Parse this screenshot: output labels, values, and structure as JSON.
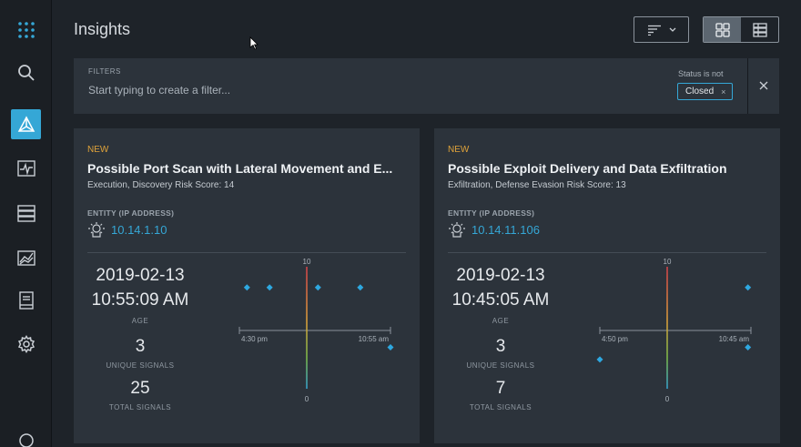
{
  "header": {
    "title": "Insights"
  },
  "toolbar": {
    "sort_icon": "sort-lines-icon",
    "view_options": [
      "grid-view-icon",
      "list-view-icon"
    ],
    "selected_view": "grid"
  },
  "filters": {
    "label": "FILTERS",
    "placeholder": "Start typing to create a filter...",
    "status_label": "Status is not",
    "chip": "Closed",
    "chip_remove": "×",
    "close": "×"
  },
  "sidebar": {
    "items": [
      {
        "icon": "grid-dots-icon",
        "active": false
      },
      {
        "icon": "search-icon",
        "active": false
      },
      {
        "icon": "insights-icon",
        "active": true
      },
      {
        "icon": "signals-pulse-icon",
        "active": false
      },
      {
        "icon": "records-stack-icon",
        "active": false
      },
      {
        "icon": "analytics-icon",
        "active": false
      },
      {
        "icon": "rules-book-icon",
        "active": false
      },
      {
        "icon": "gear-icon",
        "active": false
      },
      {
        "icon": "user-icon",
        "active": false
      }
    ]
  },
  "cards": [
    {
      "status": "NEW",
      "title": "Possible Port Scan with Lateral Movement and E...",
      "subtitle": "Execution, Discovery Risk Score: 14",
      "entity_label": "ENTITY (IP ADDRESS)",
      "entity_ip": "10.14.1.10",
      "date": "2019-02-13",
      "time": "10:55:09 AM",
      "age_label": "AGE",
      "unique_signals": "3",
      "unique_label": "UNIQUE SIGNALS",
      "total_signals": "25",
      "total_label": "TOTAL SIGNALS",
      "chart_data": {
        "type": "scatter",
        "ylim": [
          0,
          10
        ],
        "ytick_labels": [
          "10",
          "0"
        ],
        "x_labels": [
          "4:30 pm",
          "10:55 am"
        ],
        "points": [
          {
            "x": 0.05,
            "y": 8.3
          },
          {
            "x": 0.2,
            "y": 8.3
          },
          {
            "x": 0.52,
            "y": 8.3
          },
          {
            "x": 0.8,
            "y": 8.3
          },
          {
            "x": 1.0,
            "y": 3.4
          }
        ],
        "point_color": "#2ea8e0"
      }
    },
    {
      "status": "NEW",
      "title": "Possible Exploit Delivery and Data Exfiltration",
      "subtitle": "Exfiltration, Defense Evasion Risk Score: 13",
      "entity_label": "ENTITY (IP ADDRESS)",
      "entity_ip": "10.14.11.106",
      "date": "2019-02-13",
      "time": "10:45:05 AM",
      "age_label": "AGE",
      "unique_signals": "3",
      "unique_label": "UNIQUE SIGNALS",
      "total_signals": "7",
      "total_label": "TOTAL SIGNALS",
      "chart_data": {
        "type": "scatter",
        "ylim": [
          0,
          10
        ],
        "ytick_labels": [
          "10",
          "0"
        ],
        "x_labels": [
          "4:50 pm",
          "10:45 am"
        ],
        "points": [
          {
            "x": 0.98,
            "y": 8.3
          },
          {
            "x": 0.98,
            "y": 3.4
          },
          {
            "x": 0.0,
            "y": 2.4
          }
        ],
        "point_color": "#2ea8e0"
      }
    }
  ],
  "colors": {
    "accent": "#35a7d6",
    "new_status": "#e0a33a",
    "card_bg": "#2c333b",
    "page_bg": "#1e2329"
  }
}
